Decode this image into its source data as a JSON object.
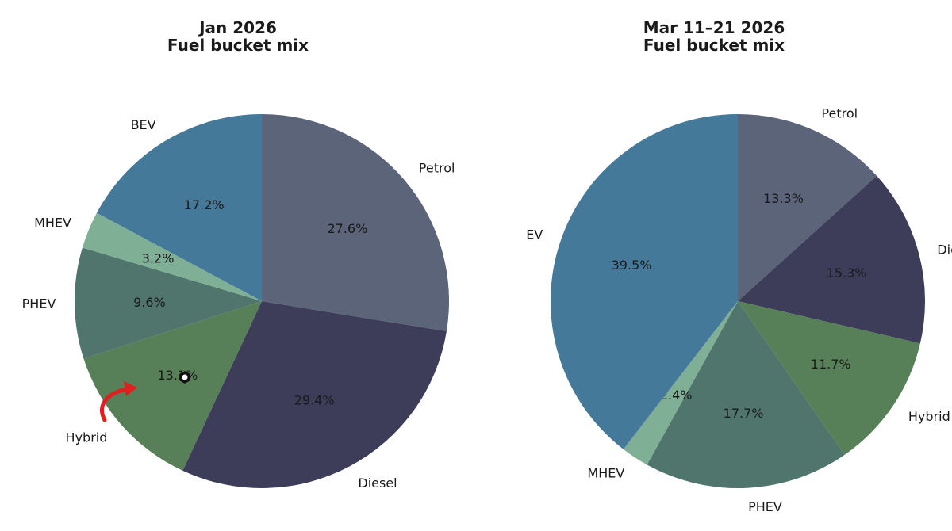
{
  "chart_data": [
    {
      "type": "pie",
      "title_line1": "Jan 2026",
      "title_line2": "Fuel bucket mix",
      "labels": [
        "Petrol",
        "Diesel",
        "Hybrid",
        "PHEV",
        "MHEV",
        "BEV"
      ],
      "values": [
        27.6,
        29.4,
        13.1,
        9.6,
        3.2,
        17.2
      ],
      "value_labels": [
        "27.6%",
        "29.4%",
        "13.1%",
        "9.6%",
        "3.2%",
        "17.2%"
      ],
      "colors": [
        "#5b6479",
        "#3d3d5a",
        "#577f58",
        "#4f756c",
        "#7fb096",
        "#45799a"
      ],
      "start_angle": "12 o'clock",
      "direction": "clockwise",
      "annotation": "red curved arrow pointing to 13.1% Hybrid label"
    },
    {
      "type": "pie",
      "title_line1": "Mar 11–21 2026",
      "title_line2": "Fuel bucket mix",
      "labels": [
        "Petrol",
        "Diesel",
        "Hybrid",
        "PHEV",
        "MHEV",
        "EV"
      ],
      "values": [
        13.3,
        15.3,
        11.7,
        17.7,
        2.4,
        39.5
      ],
      "value_labels": [
        "13.3%",
        "15.3%",
        "11.7%",
        "17.7%",
        "2.4%",
        "39.5%"
      ],
      "colors": [
        "#5b6479",
        "#3d3d5a",
        "#577f58",
        "#4f756c",
        "#7fb096",
        "#45799a"
      ],
      "start_angle": "12 o'clock",
      "direction": "clockwise"
    }
  ]
}
